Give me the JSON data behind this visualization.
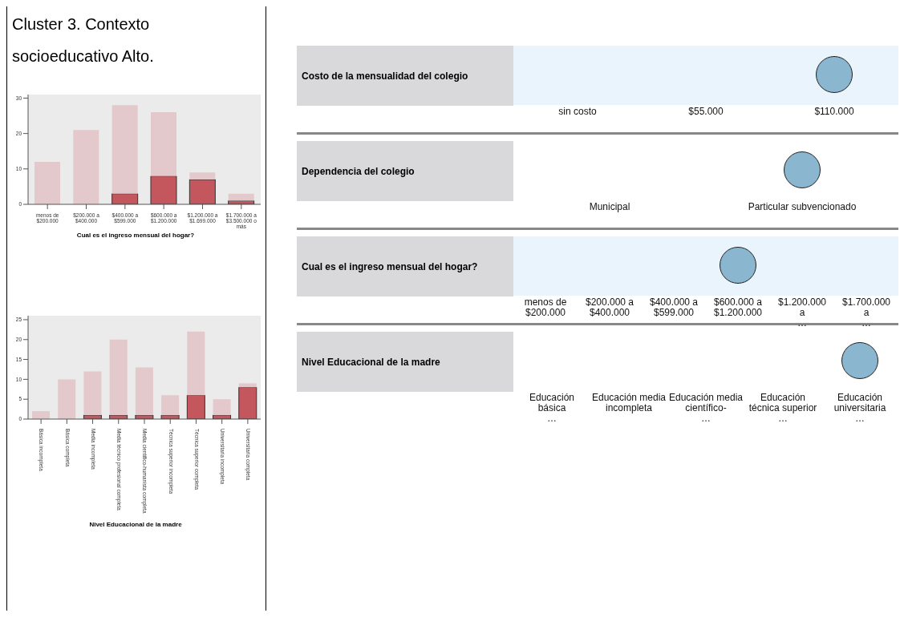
{
  "chart_data": [
    {
      "type": "other",
      "title": "Cluster 3. Contexto socioeducativo Alto."
    },
    {
      "type": "bar",
      "xlabel": "Cual es el ingreso mensual del hogar?",
      "categories": [
        "menos de\n$200.000",
        "$200.000 a\n$400.000",
        "$400.000 a\n$599.000",
        "$600.000 a\n$1.200.000",
        "$1.200.000 a\n$1.699.000",
        "$1.700.000 a\n$3.500.000 o\nmás"
      ],
      "ylim": [
        0,
        31
      ],
      "yticks": [
        0,
        10,
        20,
        30
      ],
      "stacked": true,
      "series": [
        {
          "color": "#c4565e",
          "values": [
            null,
            null,
            3,
            8,
            7,
            1
          ]
        },
        {
          "color": "#e3c9cc",
          "values": [
            12,
            21,
            25,
            18,
            2,
            2
          ]
        }
      ]
    },
    {
      "type": "bar",
      "xlabel": "Nivel Educacional de la madre",
      "categories": [
        "Básica incompleta",
        "Básica completa",
        "Media incompleta",
        "Media técnico profesional completa",
        "Media científico-humanista completa",
        "Técnica superior incompleta",
        "Técnica superior completa",
        "Universitaria incompleta",
        "Universitaria completa"
      ],
      "ylim": [
        0,
        26
      ],
      "yticks": [
        0,
        5,
        10,
        15,
        20,
        25
      ],
      "stacked": true,
      "series": [
        {
          "color": "#c4565e",
          "values": [
            null,
            null,
            1,
            1,
            1,
            1,
            6,
            1,
            8
          ]
        },
        {
          "color": "#e3c9cc",
          "values": [
            2,
            10,
            11,
            19,
            12,
            5,
            16,
            4,
            1
          ]
        }
      ]
    },
    {
      "type": "other",
      "title": "Costo de la mensualidad del colegio",
      "categories": [
        "sin costo",
        "$55.000",
        "$110.000"
      ],
      "colors": [
        null,
        null,
        "#8ab6cf"
      ]
    },
    {
      "type": "other",
      "title": "Dependencia del colegio",
      "categories": [
        "Municipal",
        "Particular subvencionado"
      ],
      "colors": [
        null,
        "#8ab6cf"
      ]
    },
    {
      "type": "other",
      "title": "Cual es el ingreso mensual del hogar?",
      "categories": [
        "menos de\n$200.000",
        "$200.000 a\n$400.000",
        "$400.000 a\n$599.000",
        "$600.000 a\n$1.200.000",
        "$1.200.000\na\n…",
        "$1.700.000\na\n…"
      ],
      "colors": [
        null,
        null,
        null,
        "#8ab6cf",
        null,
        null
      ]
    },
    {
      "type": "other",
      "title": "Nivel Educacional de la madre",
      "categories": [
        "Educación\nbásica\n…",
        "Educación media\nincompleta",
        "Educación media\ncientífico-\n…",
        "Educación\ntécnica superior\n…",
        "Educación\nuniversitaria\n…"
      ],
      "colors": [
        null,
        null,
        null,
        null,
        "#8ab6cf"
      ]
    }
  ]
}
